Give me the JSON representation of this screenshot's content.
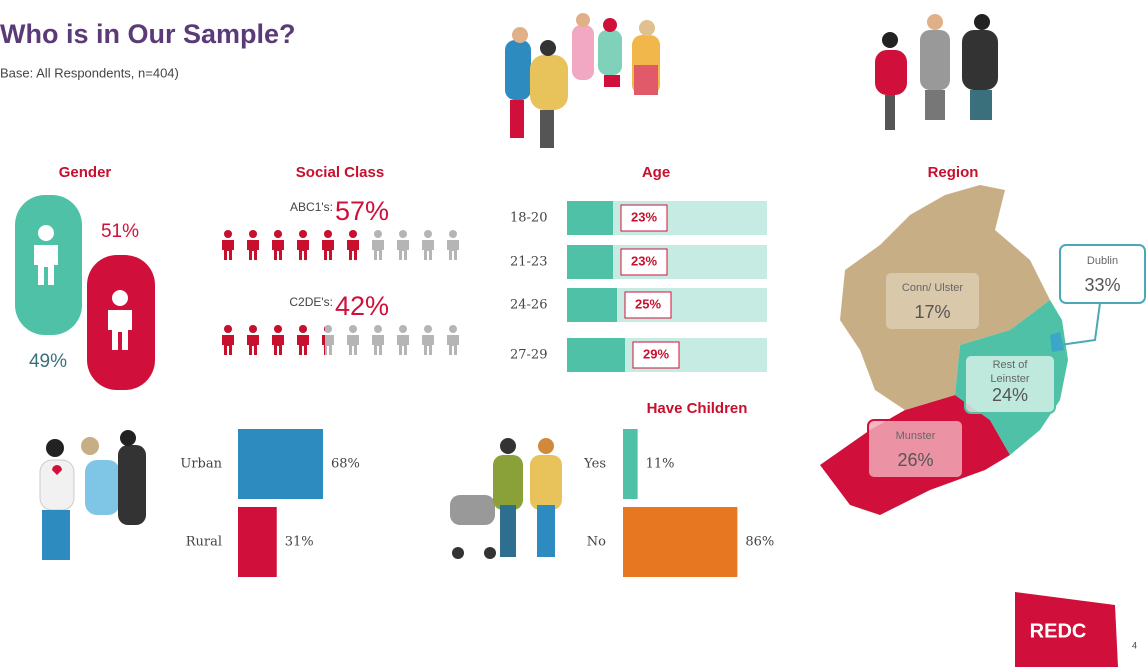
{
  "header": {
    "title": "Who is in Our Sample?",
    "subtitle": "Base: All Respondents, n=404)"
  },
  "gender": {
    "title": "Gender",
    "values": [
      49,
      51
    ],
    "value_labels": [
      "49%",
      "51%"
    ],
    "colors": [
      "#4fc1a6",
      "#d0103a"
    ]
  },
  "social_class": {
    "title": "Social Class",
    "groups": [
      {
        "name": "ABC1's:",
        "value": 57,
        "value_label": "57%"
      },
      {
        "name": "C2DE's:",
        "value": 42,
        "value_label": "42%"
      }
    ],
    "color": "#c8102e",
    "rest_color": "#b5b5b5"
  },
  "age": {
    "title": "Age",
    "categories": [
      "18-20",
      "21-23",
      "24-26",
      "27-29"
    ],
    "values": [
      23,
      23,
      25,
      29
    ],
    "value_labels": [
      "23%",
      "23%",
      "25%",
      "29%"
    ],
    "xlim": [
      0,
      100
    ],
    "color": "#4fc1a6",
    "track_color": "#c5ebe2"
  },
  "area": {
    "categories": [
      "Urban",
      "Rural"
    ],
    "values": [
      68,
      31
    ],
    "value_labels": [
      "68%",
      "31%"
    ],
    "colors": [
      "#2e8bbf",
      "#d0103a"
    ],
    "xlim": [
      0,
      100
    ]
  },
  "children": {
    "title": "Have Children",
    "categories": [
      "Yes",
      "No"
    ],
    "values": [
      11,
      86
    ],
    "value_labels": [
      "11%",
      "86%"
    ],
    "colors": [
      "#4fc1a6",
      "#e87722"
    ],
    "xlim": [
      0,
      100
    ]
  },
  "region": {
    "title": "Region",
    "categories": [
      "Conn/ Ulster",
      "Dublin",
      "Rest of Leinster",
      "Munster"
    ],
    "values": [
      17,
      33,
      24,
      26
    ],
    "value_labels": [
      "17%",
      "33%",
      "24%",
      "26%"
    ],
    "colors": [
      "#c8ae84",
      "#3aa6c9",
      "#4fc1a6",
      "#d0103a"
    ]
  },
  "footer": {
    "logo": "REDC",
    "page": "4"
  }
}
